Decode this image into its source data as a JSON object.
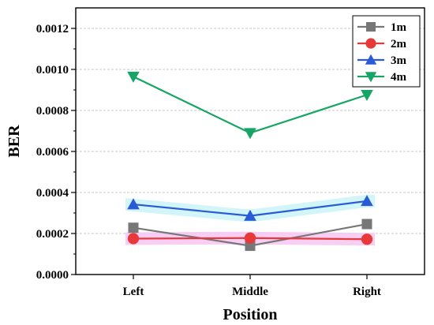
{
  "chart_data": {
    "type": "line",
    "xlabel": "Position",
    "ylabel": "BER",
    "categories": [
      "Left",
      "Middle",
      "Right"
    ],
    "ylim": [
      0,
      0.0013
    ],
    "yticks": [
      "0.0000",
      "0.0002",
      "0.0004",
      "0.0006",
      "0.0008",
      "0.0010",
      "0.0012"
    ],
    "grid": "horizontal dashed",
    "legend_position": "top-right",
    "series": [
      {
        "name": "1m",
        "values": [
          0.000228,
          0.00014,
          0.000246
        ],
        "color": "#777777",
        "marker": "square"
      },
      {
        "name": "2m",
        "values": [
          0.000175,
          0.000178,
          0.000172
        ],
        "color": "#e8393a",
        "marker": "circle",
        "band_color": "#f7c6f2"
      },
      {
        "name": "3m",
        "values": [
          0.000342,
          0.000286,
          0.000358
        ],
        "color": "#2a5bd7",
        "marker": "triangle-up",
        "band_color": "#c9f3f7"
      },
      {
        "name": "4m",
        "values": [
          0.000965,
          0.00069,
          0.000876
        ],
        "color": "#16a565",
        "marker": "triangle-down"
      }
    ]
  }
}
